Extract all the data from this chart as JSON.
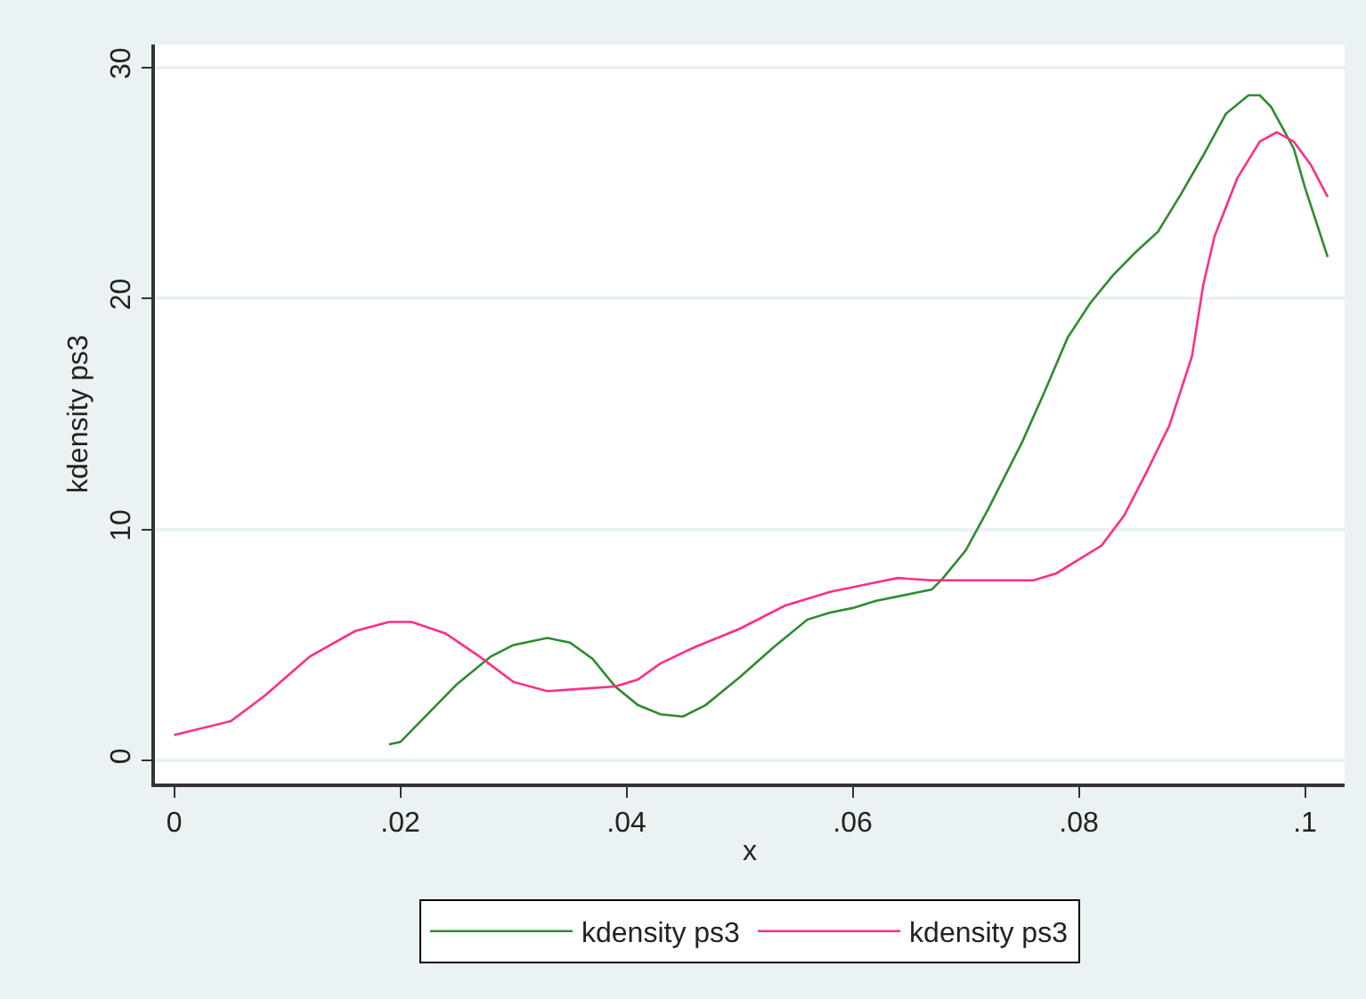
{
  "chart_data": {
    "type": "line",
    "xlabel": "x",
    "ylabel": "kdensity ps3",
    "xlim": [
      -0.0017,
      0.1035
    ],
    "xticks": [
      {
        "value": 0,
        "label": "0"
      },
      {
        "value": 0.02,
        "label": ".02"
      },
      {
        "value": 0.04,
        "label": ".04"
      },
      {
        "value": 0.06,
        "label": ".06"
      },
      {
        "value": 0.08,
        "label": ".08"
      },
      {
        "value": 0.1,
        "label": ".1"
      }
    ],
    "ylim": [
      -1,
      31
    ],
    "yticks": [
      0,
      10,
      20,
      30
    ],
    "grid": "y",
    "legend": "bottom",
    "line_style": "solid",
    "marker": "none",
    "series": [
      {
        "name": "kdensity ps3",
        "color": "#2e8b2e",
        "x": [
          0.019,
          0.02,
          0.022,
          0.025,
          0.028,
          0.03,
          0.033,
          0.035,
          0.037,
          0.039,
          0.041,
          0.043,
          0.045,
          0.047,
          0.05,
          0.053,
          0.056,
          0.058,
          0.06,
          0.062,
          0.065,
          0.067,
          0.068,
          0.07,
          0.072,
          0.075,
          0.077,
          0.079,
          0.081,
          0.083,
          0.085,
          0.087,
          0.089,
          0.091,
          0.093,
          0.095,
          0.096,
          0.097,
          0.099,
          0.1,
          0.102
        ],
        "values": [
          0.7,
          0.8,
          1.8,
          3.3,
          4.5,
          5.0,
          5.3,
          5.1,
          4.4,
          3.2,
          2.4,
          2.0,
          1.9,
          2.4,
          3.6,
          4.9,
          6.1,
          6.4,
          6.6,
          6.9,
          7.2,
          7.4,
          7.9,
          9.1,
          10.9,
          13.8,
          16.0,
          18.3,
          19.8,
          21.0,
          22.0,
          22.9,
          24.5,
          26.2,
          28.0,
          28.8,
          28.8,
          28.3,
          26.5,
          24.8,
          21.8
        ]
      },
      {
        "name": "kdensity ps3",
        "color": "#ff2d87",
        "x": [
          0,
          0.005,
          0.008,
          0.012,
          0.016,
          0.019,
          0.021,
          0.024,
          0.027,
          0.03,
          0.033,
          0.036,
          0.039,
          0.041,
          0.043,
          0.046,
          0.05,
          0.054,
          0.058,
          0.062,
          0.064,
          0.067,
          0.07,
          0.073,
          0.076,
          0.078,
          0.08,
          0.082,
          0.084,
          0.086,
          0.088,
          0.09,
          0.091,
          0.092,
          0.094,
          0.096,
          0.0975,
          0.099,
          0.1005,
          0.102
        ],
        "values": [
          1.1,
          1.7,
          2.8,
          4.5,
          5.6,
          6.0,
          6.0,
          5.5,
          4.5,
          3.4,
          3.0,
          3.1,
          3.2,
          3.5,
          4.2,
          4.9,
          5.7,
          6.7,
          7.3,
          7.7,
          7.9,
          7.8,
          7.8,
          7.8,
          7.8,
          8.1,
          8.7,
          9.3,
          10.6,
          12.5,
          14.5,
          17.5,
          20.6,
          22.7,
          25.2,
          26.8,
          27.2,
          26.8,
          25.8,
          24.4
        ]
      }
    ]
  }
}
